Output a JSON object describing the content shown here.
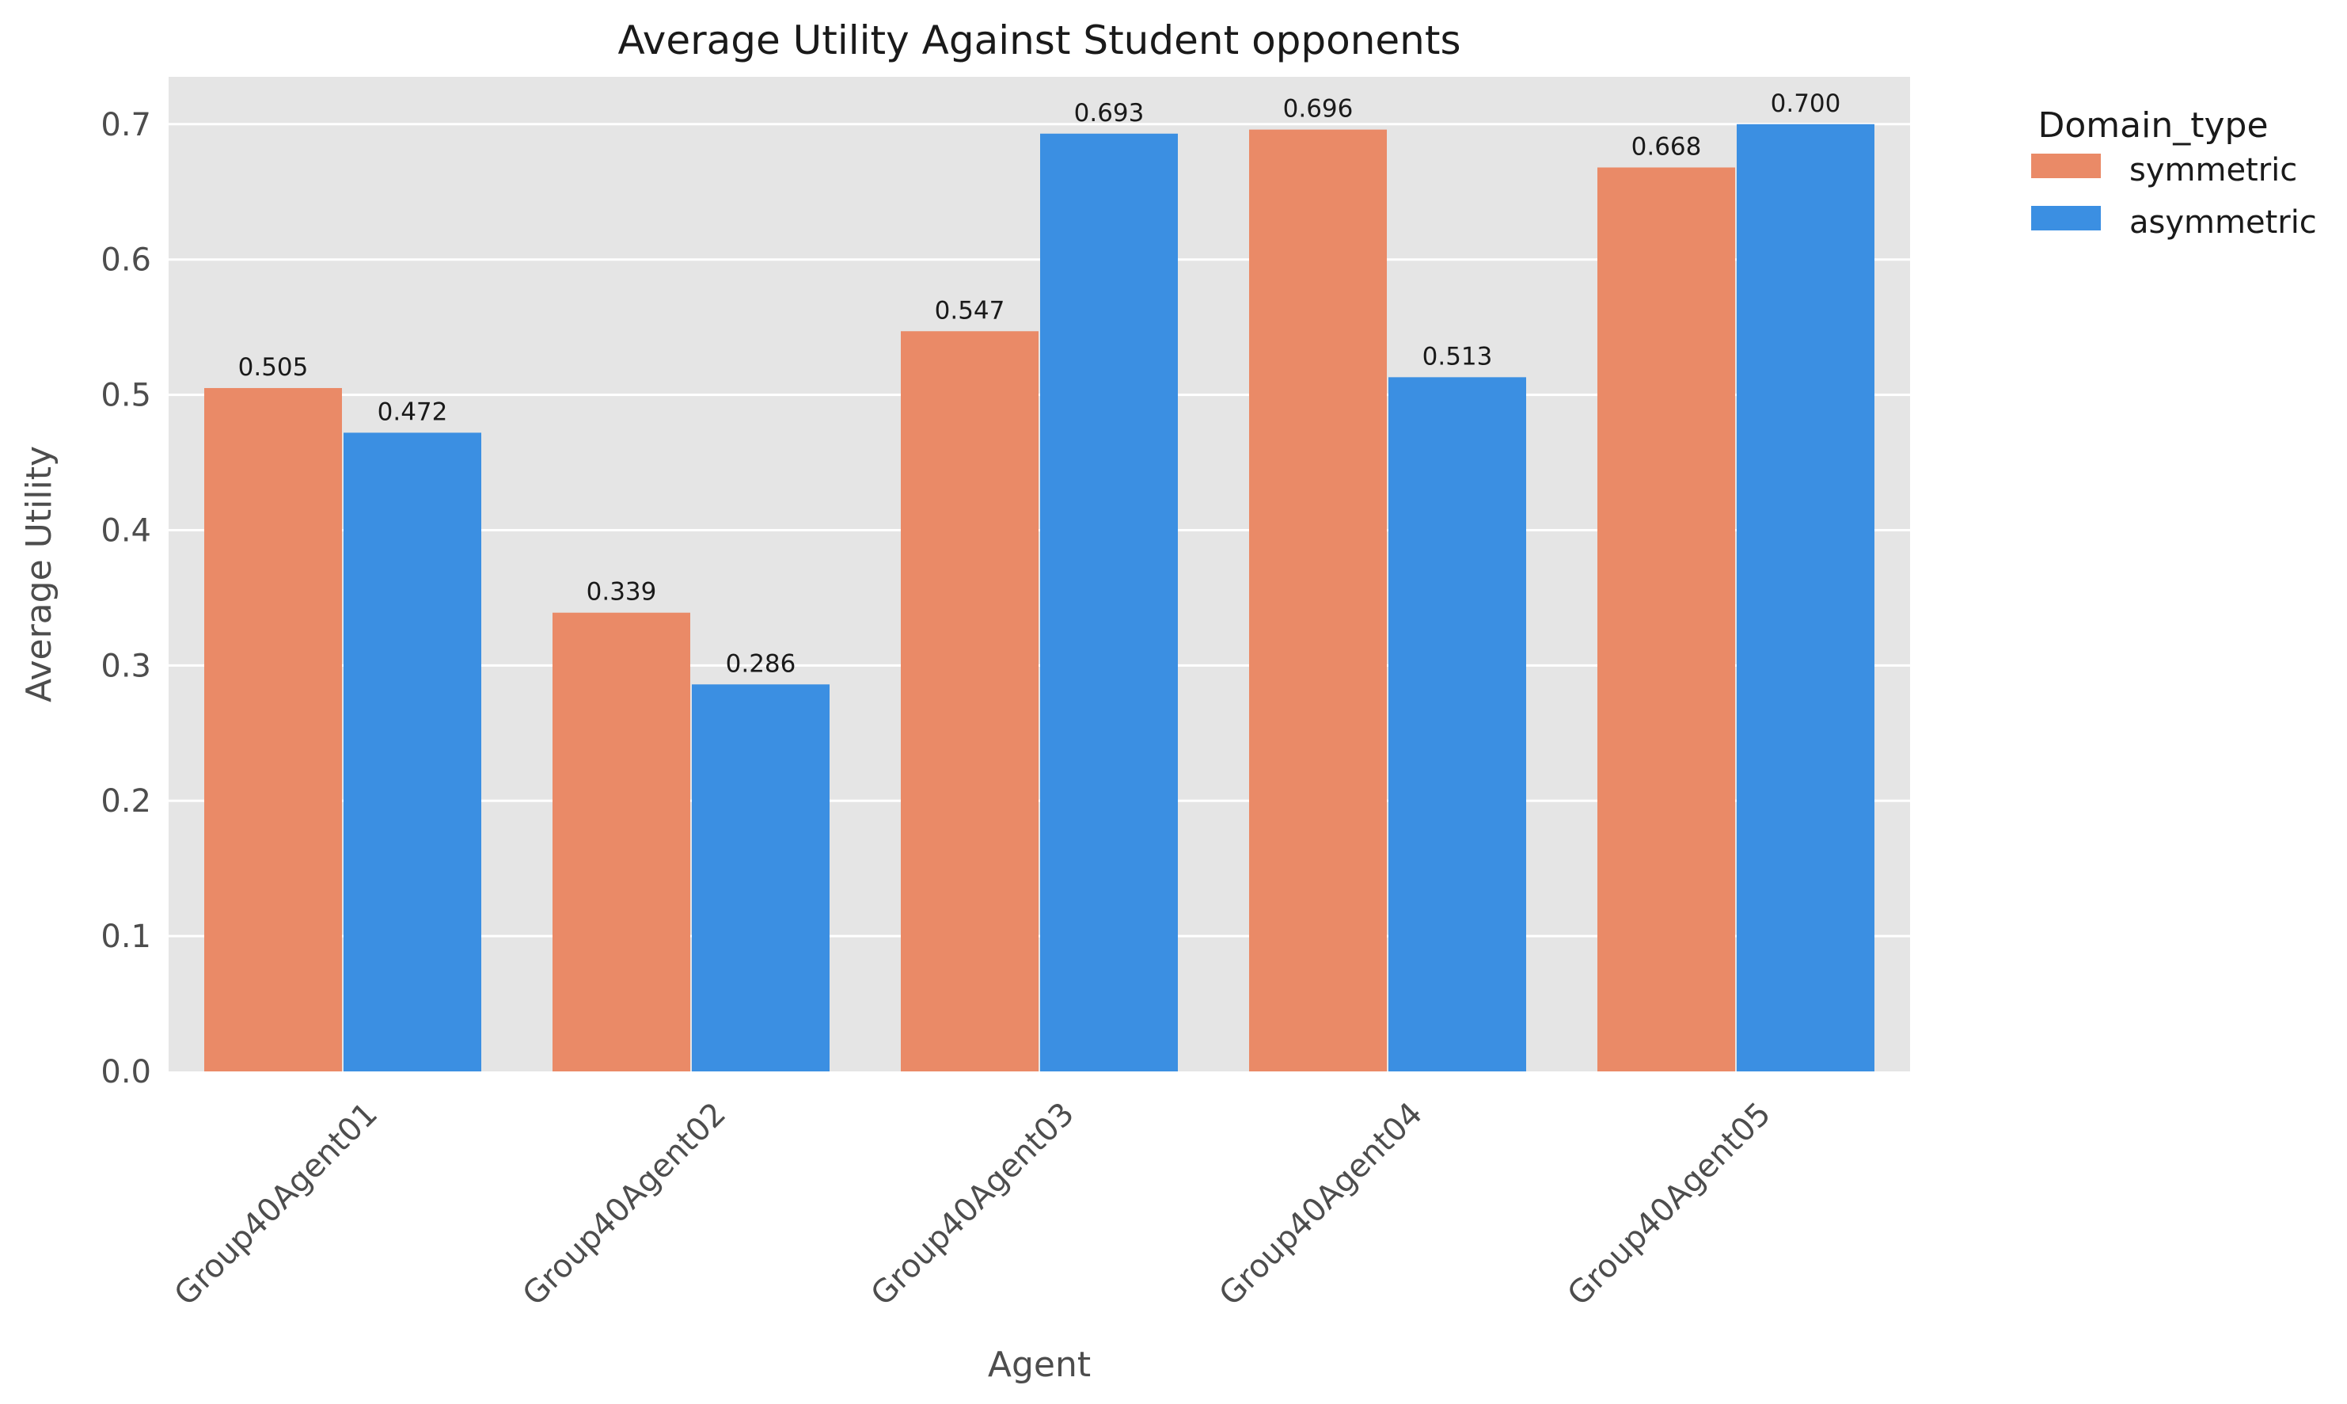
{
  "chart_data": {
    "type": "bar",
    "title": "Average Utility Against Student opponents",
    "xlabel": "Agent",
    "ylabel": "Average Utility",
    "categories": [
      "Group40Agent01",
      "Group40Agent02",
      "Group40Agent03",
      "Group40Agent04",
      "Group40Agent05"
    ],
    "series": [
      {
        "name": "symmetric",
        "color": "#EA8A67",
        "values": [
          0.505,
          0.339,
          0.547,
          0.696,
          0.668
        ],
        "labels": [
          "0.505",
          "0.339",
          "0.547",
          "0.696",
          "0.668"
        ]
      },
      {
        "name": "asymmetric",
        "color": "#3B8FE2",
        "values": [
          0.472,
          0.286,
          0.693,
          0.513,
          0.7
        ],
        "labels": [
          "0.472",
          "0.286",
          "0.693",
          "0.513",
          "0.700"
        ]
      }
    ],
    "ylim": [
      0,
      0.735
    ],
    "yticks": [
      0.0,
      0.1,
      0.2,
      0.3,
      0.4,
      0.5,
      0.6,
      0.7
    ],
    "ytick_labels": [
      "0.0",
      "0.1",
      "0.2",
      "0.3",
      "0.4",
      "0.5",
      "0.6",
      "0.7"
    ],
    "legend": {
      "title": "Domain_type",
      "placement": "outside-top-right"
    },
    "grid": true,
    "background_color": "#E5E5E5",
    "xtick_rotation": 45
  }
}
